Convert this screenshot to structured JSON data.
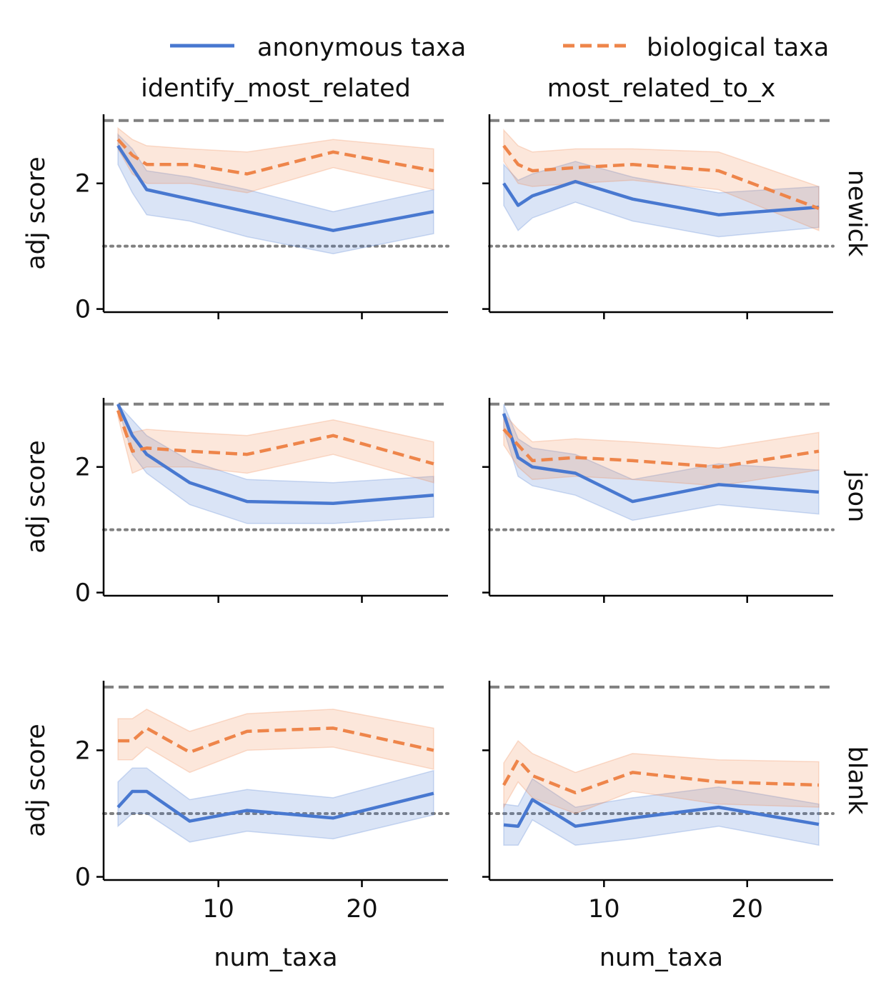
{
  "chart_data": {
    "type": "line",
    "legend": {
      "position": "top",
      "entries": [
        {
          "name": "anonymous taxa",
          "color": "#4878d0",
          "style": "solid"
        },
        {
          "name": "biological taxa",
          "color": "#ee854a",
          "style": "dashed"
        }
      ]
    },
    "columns": [
      "identify_most_related",
      "most_related_to_x"
    ],
    "rows": [
      "newick",
      "json",
      "blank"
    ],
    "xlabel": "num_taxa",
    "ylabel": "adj score",
    "xlim": [
      2,
      26
    ],
    "ylim": [
      -0.05,
      3.1
    ],
    "xticks": [
      10,
      20
    ],
    "yticks": [
      0,
      2
    ],
    "reference_lines": [
      {
        "y": 3,
        "style": "dashed",
        "color": "#808080"
      },
      {
        "y": 1,
        "style": "dotted",
        "color": "#808080"
      }
    ],
    "x": [
      3,
      4,
      5,
      8,
      12,
      18,
      25
    ],
    "panels": [
      {
        "row": "newick",
        "column": "identify_most_related",
        "series": [
          {
            "name": "anonymous taxa",
            "values": [
              2.6,
              2.25,
              1.9,
              1.75,
              1.55,
              1.25,
              1.55
            ],
            "lower": [
              2.3,
              1.85,
              1.5,
              1.4,
              1.15,
              0.88,
              1.2
            ],
            "upper": [
              2.78,
              2.55,
              2.2,
              2.1,
              1.9,
              1.55,
              1.9
            ]
          },
          {
            "name": "biological taxa",
            "values": [
              2.7,
              2.45,
              2.3,
              2.3,
              2.15,
              2.5,
              2.2
            ],
            "lower": [
              2.55,
              2.15,
              2.0,
              2.0,
              1.85,
              2.25,
              1.9
            ],
            "upper": [
              2.88,
              2.7,
              2.6,
              2.55,
              2.5,
              2.7,
              2.55
            ]
          }
        ]
      },
      {
        "row": "newick",
        "column": "most_related_to_x",
        "series": [
          {
            "name": "anonymous taxa",
            "values": [
              2.0,
              1.65,
              1.8,
              2.03,
              1.75,
              1.5,
              1.62
            ],
            "lower": [
              1.65,
              1.25,
              1.45,
              1.7,
              1.4,
              1.15,
              1.3
            ],
            "upper": [
              2.3,
              2.05,
              2.15,
              2.35,
              2.1,
              1.85,
              1.95
            ]
          },
          {
            "name": "biological taxa",
            "values": [
              2.6,
              2.3,
              2.2,
              2.25,
              2.3,
              2.2,
              1.6
            ],
            "lower": [
              2.35,
              2.0,
              1.95,
              2.0,
              2.05,
              1.9,
              1.25
            ],
            "upper": [
              2.85,
              2.6,
              2.5,
              2.55,
              2.55,
              2.5,
              1.95
            ]
          }
        ]
      },
      {
        "row": "json",
        "column": "identify_most_related",
        "series": [
          {
            "name": "anonymous taxa",
            "values": [
              3.0,
              2.5,
              2.2,
              1.75,
              1.45,
              1.42,
              1.55
            ],
            "lower": [
              2.95,
              2.2,
              1.9,
              1.4,
              1.1,
              1.1,
              1.2
            ],
            "upper": [
              3.0,
              2.75,
              2.5,
              2.1,
              1.8,
              1.75,
              1.85
            ]
          },
          {
            "name": "biological taxa",
            "values": [
              2.9,
              2.25,
              2.3,
              2.25,
              2.2,
              2.5,
              2.05
            ],
            "lower": [
              2.8,
              1.9,
              2.0,
              2.0,
              1.9,
              2.2,
              1.75
            ],
            "upper": [
              3.0,
              2.55,
              2.6,
              2.55,
              2.5,
              2.75,
              2.4
            ]
          }
        ]
      },
      {
        "row": "json",
        "column": "most_related_to_x",
        "series": [
          {
            "name": "anonymous taxa",
            "values": [
              2.85,
              2.15,
              2.0,
              1.9,
              1.45,
              1.72,
              1.6
            ],
            "lower": [
              2.6,
              1.85,
              1.7,
              1.55,
              1.15,
              1.4,
              1.25
            ],
            "upper": [
              3.0,
              2.45,
              2.3,
              2.2,
              1.8,
              2.05,
              1.95
            ]
          },
          {
            "name": "biological taxa",
            "values": [
              2.6,
              2.35,
              2.1,
              2.15,
              2.1,
              2.0,
              2.25
            ],
            "lower": [
              2.35,
              2.0,
              1.8,
              1.85,
              1.8,
              1.7,
              1.95
            ],
            "upper": [
              2.85,
              2.6,
              2.4,
              2.45,
              2.4,
              2.3,
              2.55
            ]
          }
        ]
      },
      {
        "row": "blank",
        "column": "identify_most_related",
        "series": [
          {
            "name": "anonymous taxa",
            "values": [
              1.1,
              1.35,
              1.35,
              0.88,
              1.05,
              0.93,
              1.32
            ],
            "lower": [
              0.8,
              1.0,
              1.0,
              0.55,
              0.72,
              0.6,
              0.98
            ],
            "upper": [
              1.5,
              1.72,
              1.72,
              1.22,
              1.38,
              1.25,
              1.68
            ]
          },
          {
            "name": "biological taxa",
            "values": [
              2.15,
              2.15,
              2.35,
              1.97,
              2.3,
              2.35,
              2.0
            ],
            "lower": [
              1.85,
              1.85,
              2.05,
              1.65,
              2.0,
              2.05,
              1.7
            ],
            "upper": [
              2.5,
              2.5,
              2.65,
              2.3,
              2.58,
              2.65,
              2.35
            ]
          }
        ]
      },
      {
        "row": "blank",
        "column": "most_related_to_x",
        "series": [
          {
            "name": "anonymous taxa",
            "values": [
              0.82,
              0.8,
              1.22,
              0.8,
              0.93,
              1.1,
              0.83
            ],
            "lower": [
              0.5,
              0.5,
              0.9,
              0.5,
              0.6,
              0.8,
              0.5
            ],
            "upper": [
              1.15,
              1.12,
              1.55,
              1.1,
              1.25,
              1.42,
              1.15
            ]
          },
          {
            "name": "biological taxa",
            "values": [
              1.45,
              1.85,
              1.6,
              1.33,
              1.65,
              1.5,
              1.45
            ],
            "lower": [
              1.1,
              1.5,
              1.25,
              1.0,
              1.35,
              1.15,
              1.1
            ],
            "upper": [
              1.8,
              2.15,
              1.95,
              1.65,
              1.95,
              1.85,
              1.82
            ]
          }
        ]
      }
    ]
  }
}
